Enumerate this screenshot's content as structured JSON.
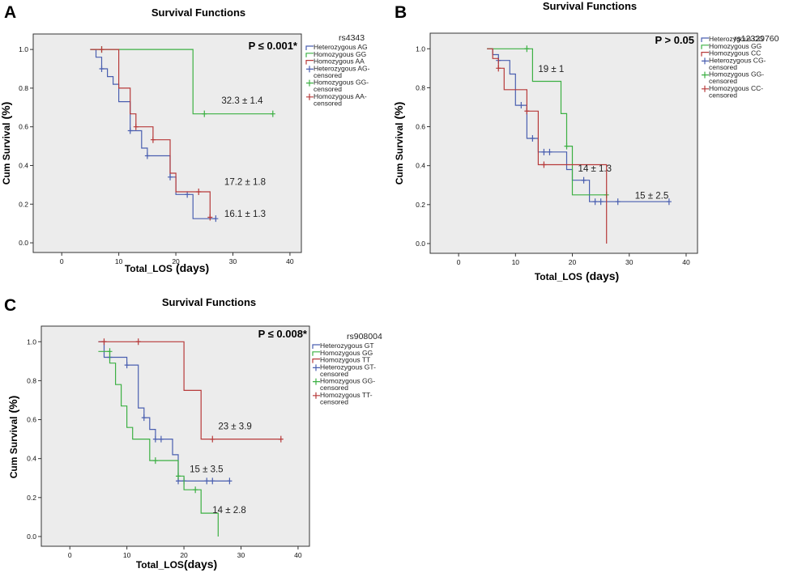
{
  "chart_data": [
    {
      "panel": "A",
      "type": "line",
      "title": "Survival Functions",
      "xlabel": "Total_LOS (days)",
      "xlabel_main": "Total_LOS",
      "xlabel_unit": "(days)",
      "ylabel": "Cum Survival (%)",
      "ylabel_main": "Cum Survival",
      "ylabel_unit": "(%)",
      "xlim": [
        -5,
        42
      ],
      "ylim": [
        -0.05,
        1.08
      ],
      "xticks": [
        0,
        10,
        20,
        30,
        40
      ],
      "yticks": [
        0.0,
        0.2,
        0.4,
        0.6,
        0.8,
        1.0
      ],
      "p_value": "P ≤ 0.001*",
      "legend_title": "rs4343",
      "legend": [
        {
          "kind": "line",
          "lines": [
            "Heterozygous AG"
          ],
          "color": "#4a5fb0"
        },
        {
          "kind": "line",
          "lines": [
            "Homozygous GG"
          ],
          "color": "#3cb043"
        },
        {
          "kind": "line",
          "lines": [
            "Homozygous AA"
          ],
          "color": "#b73a3a"
        },
        {
          "kind": "cross",
          "lines": [
            "Heterozygous AG-",
            "censored"
          ],
          "color": "#4a5fb0"
        },
        {
          "kind": "cross",
          "lines": [
            "Homozygous GG-",
            "censored"
          ],
          "color": "#3cb043"
        },
        {
          "kind": "cross",
          "lines": [
            "Homozygous AA-",
            "censored"
          ],
          "color": "#b73a3a"
        }
      ],
      "series": [
        {
          "name": "Heterozygous AG",
          "color": "#4a5fb0",
          "steps": [
            [
              5,
              1.0
            ],
            [
              6,
              0.96
            ],
            [
              7,
              0.9
            ],
            [
              8,
              0.86
            ],
            [
              9,
              0.82
            ],
            [
              10,
              0.73
            ],
            [
              12,
              0.58
            ],
            [
              13,
              0.58
            ],
            [
              14,
              0.49
            ],
            [
              15,
              0.45
            ],
            [
              18,
              0.45
            ],
            [
              19,
              0.34
            ],
            [
              20,
              0.25
            ],
            [
              22,
              0.25
            ],
            [
              23,
              0.125
            ],
            [
              27,
              0.125
            ]
          ],
          "censored": [
            [
              7,
              0.9
            ],
            [
              12,
              0.58
            ],
            [
              15,
              0.45
            ],
            [
              19,
              0.34
            ],
            [
              22,
              0.25
            ],
            [
              27,
              0.125
            ]
          ]
        },
        {
          "name": "Homozygous GG",
          "color": "#3cb043",
          "steps": [
            [
              5,
              1.0
            ],
            [
              23,
              1.0
            ],
            [
              23,
              0.667
            ],
            [
              37,
              0.667
            ]
          ],
          "censored": [
            [
              7,
              1.0
            ],
            [
              25,
              0.667
            ],
            [
              37,
              0.667
            ]
          ]
        },
        {
          "name": "Homozygous AA",
          "color": "#b73a3a",
          "steps": [
            [
              5,
              1.0
            ],
            [
              7,
              1.0
            ],
            [
              10,
              0.8
            ],
            [
              12,
              0.667
            ],
            [
              13,
              0.6
            ],
            [
              15,
              0.6
            ],
            [
              16,
              0.533
            ],
            [
              18,
              0.533
            ],
            [
              19,
              0.36
            ],
            [
              20,
              0.264
            ],
            [
              23,
              0.264
            ],
            [
              26,
              0.132
            ],
            [
              26,
              0.132
            ]
          ],
          "censored": [
            [
              7,
              1.0
            ],
            [
              13,
              0.6
            ],
            [
              16,
              0.533
            ],
            [
              24,
              0.264
            ],
            [
              26,
              0.132
            ]
          ]
        }
      ],
      "annotations": [
        {
          "text": "32.3 ± 1.4",
          "x": 28,
          "y": 0.72
        },
        {
          "text": "17.2 ± 1.8",
          "x": 28.5,
          "y": 0.3
        },
        {
          "text": "16.1 ± 1.3",
          "x": 28.5,
          "y": 0.135
        }
      ]
    },
    {
      "panel": "B",
      "type": "line",
      "title": "Survival Functions",
      "xlabel": "Total_LOS (days)",
      "xlabel_main": "Total_LOS",
      "xlabel_unit": "(days)",
      "ylabel": "Cum Survival (%)",
      "ylabel_main": "Cum Survival",
      "ylabel_unit": "(%)",
      "xlim": [
        -5,
        42
      ],
      "ylim": [
        -0.05,
        1.08
      ],
      "xticks": [
        0,
        10,
        20,
        30,
        40
      ],
      "yticks": [
        0.0,
        0.2,
        0.4,
        0.6,
        0.8,
        1.0
      ],
      "p_value": "P > 0.05",
      "legend_title": "rs12329760",
      "legend": [
        {
          "kind": "line",
          "lines": [
            "Heterozygous CG"
          ],
          "color": "#4a5fb0"
        },
        {
          "kind": "line",
          "lines": [
            "Homozygous GG"
          ],
          "color": "#3cb043"
        },
        {
          "kind": "line",
          "lines": [
            "Homozygous CC"
          ],
          "color": "#b73a3a"
        },
        {
          "kind": "cross",
          "lines": [
            "Heterozygous CG-",
            "censored"
          ],
          "color": "#4a5fb0"
        },
        {
          "kind": "cross",
          "lines": [
            "Homozygous GG-",
            "censored"
          ],
          "color": "#3cb043"
        },
        {
          "kind": "cross",
          "lines": [
            "Homozygous CC-",
            "censored"
          ],
          "color": "#b73a3a"
        }
      ],
      "series": [
        {
          "name": "Heterozygous CG",
          "color": "#4a5fb0",
          "steps": [
            [
              5,
              1.0
            ],
            [
              6,
              0.97
            ],
            [
              7,
              0.94
            ],
            [
              9,
              0.87
            ],
            [
              10,
              0.71
            ],
            [
              12,
              0.54
            ],
            [
              14,
              0.47
            ],
            [
              19,
              0.38
            ],
            [
              20,
              0.325
            ],
            [
              23,
              0.215
            ],
            [
              37,
              0.215
            ]
          ],
          "censored": [
            [
              7,
              0.94
            ],
            [
              11,
              0.71
            ],
            [
              13,
              0.54
            ],
            [
              15,
              0.47
            ],
            [
              16,
              0.47
            ],
            [
              22,
              0.325
            ],
            [
              24,
              0.215
            ],
            [
              25,
              0.215
            ],
            [
              28,
              0.215
            ],
            [
              37,
              0.215
            ]
          ]
        },
        {
          "name": "Homozygous GG",
          "color": "#3cb043",
          "steps": [
            [
              5,
              1.0
            ],
            [
              13,
              1.0
            ],
            [
              13,
              0.833
            ],
            [
              18,
              0.667
            ],
            [
              19,
              0.5
            ],
            [
              20,
              0.25
            ],
            [
              26,
              0.25
            ],
            [
              26,
              0.25
            ]
          ],
          "censored": [
            [
              12,
              1.0
            ],
            [
              19,
              0.5
            ],
            [
              26,
              0.25
            ]
          ]
        },
        {
          "name": "Homozygous CC",
          "color": "#b73a3a",
          "steps": [
            [
              5,
              1.0
            ],
            [
              6,
              0.95
            ],
            [
              7,
              0.9
            ],
            [
              8,
              0.79
            ],
            [
              10,
              0.79
            ],
            [
              12,
              0.68
            ],
            [
              14,
              0.405
            ],
            [
              26,
              0.405
            ],
            [
              26,
              0.0
            ]
          ],
          "censored": [
            [
              7,
              0.9
            ],
            [
              12,
              0.68
            ],
            [
              15,
              0.405
            ]
          ]
        }
      ],
      "annotations": [
        {
          "text": "19 ± 1",
          "x": 14,
          "y": 0.88
        },
        {
          "text": "14 ± 1.3",
          "x": 21,
          "y": 0.37
        },
        {
          "text": "15 ± 2.5",
          "x": 31,
          "y": 0.23
        }
      ]
    },
    {
      "panel": "C",
      "type": "line",
      "title": "Survival Functions",
      "xlabel": "Total_LOS(days)",
      "xlabel_main": "Total_LOS",
      "xlabel_unit": "(days)",
      "ylabel": "Cum Survival (%)",
      "ylabel_main": "Cum Survival",
      "ylabel_unit": "(%)",
      "xlim": [
        -5,
        42
      ],
      "ylim": [
        -0.05,
        1.08
      ],
      "xticks": [
        0,
        10,
        20,
        30,
        40
      ],
      "yticks": [
        0.0,
        0.2,
        0.4,
        0.6,
        0.8,
        1.0
      ],
      "p_value": "P ≤ 0.008*",
      "legend_title": "rs908004",
      "legend": [
        {
          "kind": "line",
          "lines": [
            "Heterozygous GT"
          ],
          "color": "#4a5fb0"
        },
        {
          "kind": "line",
          "lines": [
            "Homozygous GG"
          ],
          "color": "#3cb043"
        },
        {
          "kind": "line",
          "lines": [
            "Homozygous TT"
          ],
          "color": "#b73a3a"
        },
        {
          "kind": "cross",
          "lines": [
            "Heterozygous GT-",
            "censored"
          ],
          "color": "#4a5fb0"
        },
        {
          "kind": "cross",
          "lines": [
            "Homozygous GG-",
            "censored"
          ],
          "color": "#3cb043"
        },
        {
          "kind": "cross",
          "lines": [
            "Homozygous TT-",
            "censored"
          ],
          "color": "#b73a3a"
        }
      ],
      "series": [
        {
          "name": "Heterozygous GT",
          "color": "#4a5fb0",
          "steps": [
            [
              5,
              1.0
            ],
            [
              6,
              0.96
            ],
            [
              6,
              0.92
            ],
            [
              9,
              0.92
            ],
            [
              10,
              0.88
            ],
            [
              12,
              0.66
            ],
            [
              13,
              0.61
            ],
            [
              14,
              0.55
            ],
            [
              15,
              0.5
            ],
            [
              18,
              0.5
            ],
            [
              18,
              0.42
            ],
            [
              19,
              0.285
            ],
            [
              28,
              0.285
            ]
          ],
          "censored": [
            [
              7,
              0.92
            ],
            [
              10,
              0.88
            ],
            [
              13,
              0.61
            ],
            [
              15,
              0.5
            ],
            [
              16,
              0.5
            ],
            [
              19,
              0.285
            ],
            [
              20,
              0.285
            ],
            [
              24,
              0.285
            ],
            [
              25,
              0.285
            ],
            [
              28,
              0.285
            ]
          ]
        },
        {
          "name": "Homozygous GG",
          "color": "#3cb043",
          "steps": [
            [
              5,
              0.95
            ],
            [
              7,
              0.89
            ],
            [
              8,
              0.78
            ],
            [
              9,
              0.67
            ],
            [
              10,
              0.56
            ],
            [
              11,
              0.5
            ],
            [
              13,
              0.5
            ],
            [
              14,
              0.39
            ],
            [
              19,
              0.39
            ],
            [
              19,
              0.31
            ],
            [
              20,
              0.24
            ],
            [
              23,
              0.24
            ],
            [
              23,
              0.12
            ],
            [
              26,
              0.12
            ],
            [
              26,
              0.0
            ]
          ],
          "censored": [
            [
              7,
              0.95
            ],
            [
              15,
              0.39
            ],
            [
              19,
              0.31
            ],
            [
              22,
              0.24
            ]
          ]
        },
        {
          "name": "Homozygous TT",
          "color": "#b73a3a",
          "steps": [
            [
              5,
              1.0
            ],
            [
              20,
              1.0
            ],
            [
              20,
              0.75
            ],
            [
              23,
              0.75
            ],
            [
              23,
              0.5
            ],
            [
              37,
              0.5
            ]
          ],
          "censored": [
            [
              6,
              1.0
            ],
            [
              12,
              1.0
            ],
            [
              25,
              0.5
            ],
            [
              37,
              0.5
            ]
          ]
        }
      ],
      "annotations": [
        {
          "text": "23 ± 3.9",
          "x": 26,
          "y": 0.55
        },
        {
          "text": "15 ± 3.5",
          "x": 21,
          "y": 0.33
        },
        {
          "text": "14 ± 2.8",
          "x": 25,
          "y": 0.12
        }
      ]
    }
  ]
}
